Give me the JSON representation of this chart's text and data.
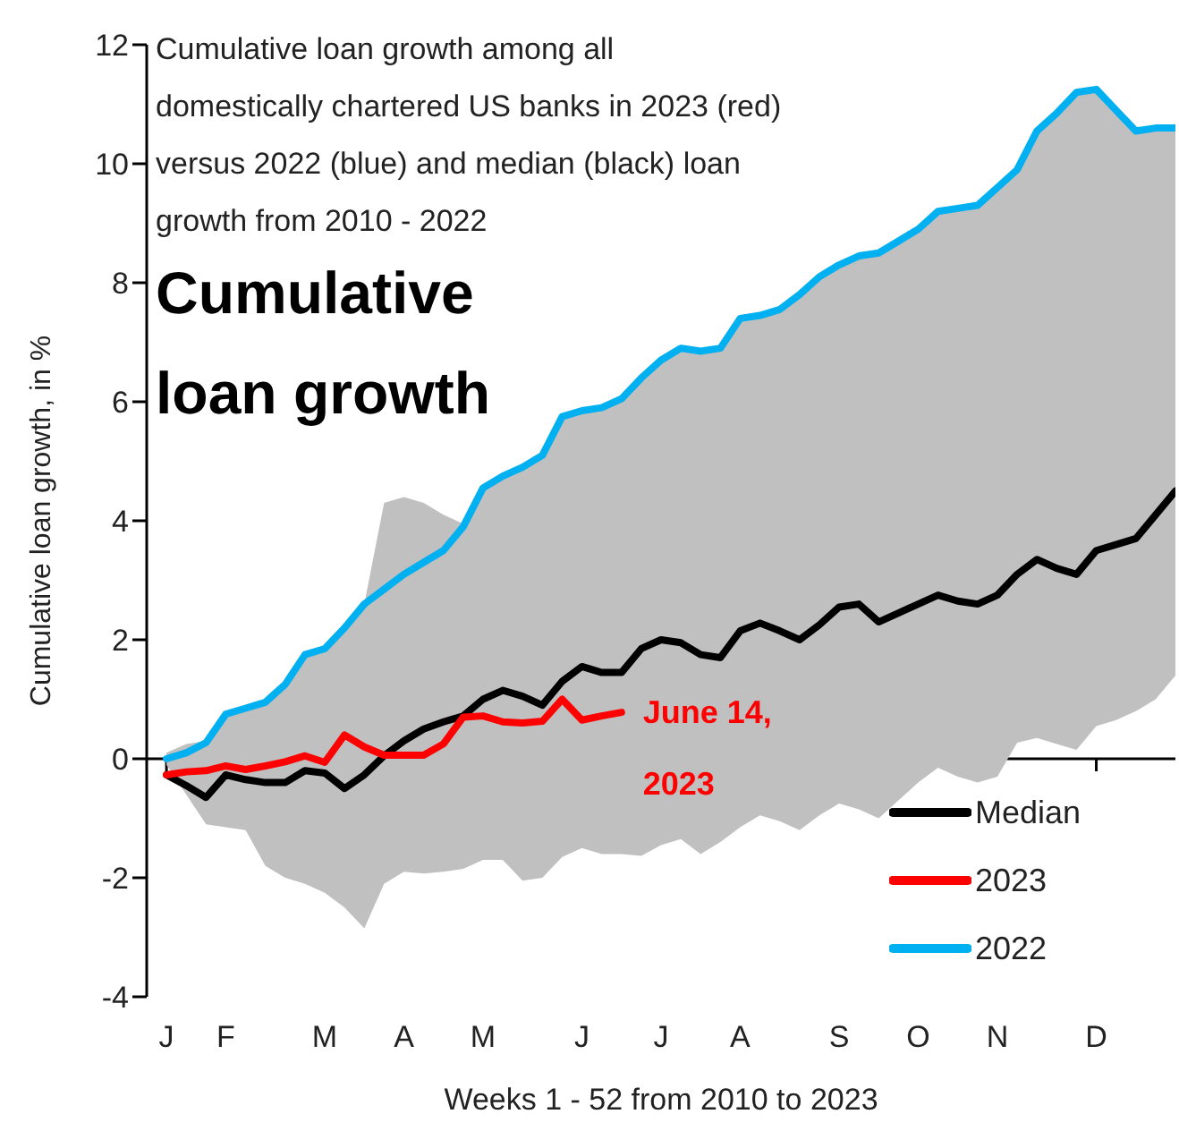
{
  "chart_data": {
    "type": "line",
    "title": "Cumulative loan growth",
    "subtitle": "Cumulative loan growth among all domestically chartered US banks in 2023 (red) versus 2022 (blue) and median (black) loan growth from 2010 - 2022",
    "xlabel": "Weeks 1 - 52 from 2010 to 2023",
    "ylabel": "Cumulative loan growth, in %",
    "categories": [
      "J",
      null,
      null,
      "F",
      null,
      null,
      null,
      null,
      "M",
      null,
      null,
      null,
      "A",
      null,
      null,
      null,
      "M",
      null,
      null,
      null,
      null,
      "J",
      null,
      null,
      null,
      "J",
      null,
      null,
      null,
      "A",
      null,
      null,
      null,
      null,
      "S",
      null,
      null,
      null,
      "O",
      null,
      null,
      null,
      "N",
      null,
      null,
      null,
      null,
      "D",
      null,
      null,
      null,
      null
    ],
    "ylim": [
      -4,
      12
    ],
    "yticks": [
      -4,
      -2,
      0,
      2,
      4,
      6,
      8,
      10,
      12
    ],
    "series": [
      {
        "name": "Median",
        "color": "#000000",
        "values": [
          -0.27,
          -0.45,
          -0.65,
          -0.27,
          -0.35,
          -0.4,
          -0.4,
          -0.2,
          -0.24,
          -0.5,
          -0.27,
          0.05,
          0.3,
          0.5,
          0.62,
          0.72,
          1.0,
          1.15,
          1.05,
          0.9,
          1.3,
          1.55,
          1.45,
          1.45,
          1.85,
          2.0,
          1.95,
          1.75,
          1.7,
          2.15,
          2.28,
          2.15,
          2.0,
          2.25,
          2.55,
          2.6,
          2.3,
          2.45,
          2.6,
          2.75,
          2.65,
          2.6,
          2.75,
          3.1,
          3.35,
          3.2,
          3.1,
          3.5,
          3.6,
          3.7,
          4.1,
          4.5
        ],
        "lower": [
          -0.1,
          -0.6,
          -1.1,
          -1.15,
          -1.2,
          -1.8,
          -2.0,
          -2.1,
          -2.25,
          -2.5,
          -2.85,
          -2.1,
          -1.9,
          -1.93,
          -1.9,
          -1.85,
          -1.7,
          -1.7,
          -2.05,
          -2.0,
          -1.65,
          -1.5,
          -1.6,
          -1.6,
          -1.63,
          -1.45,
          -1.35,
          -1.6,
          -1.4,
          -1.15,
          -0.95,
          -1.05,
          -1.2,
          -0.95,
          -0.75,
          -0.85,
          -1.0,
          -0.7,
          -0.4,
          -0.15,
          -0.3,
          -0.4,
          -0.3,
          0.27,
          0.35,
          0.25,
          0.15,
          0.55,
          0.65,
          0.8,
          1.0,
          1.4
        ],
        "upper": [
          0.1,
          0.25,
          0.3,
          0.75,
          0.85,
          0.95,
          1.25,
          1.75,
          1.85,
          2.2,
          2.6,
          4.3,
          4.4,
          4.3,
          4.1,
          3.95,
          4.55,
          4.75,
          4.9,
          5.1,
          5.75,
          5.85,
          5.9,
          6.05,
          6.4,
          6.7,
          6.9,
          6.85,
          6.9,
          7.4,
          7.45,
          7.55,
          7.8,
          8.1,
          8.3,
          8.45,
          8.5,
          8.7,
          8.9,
          9.2,
          9.25,
          9.3,
          9.6,
          9.9,
          10.55,
          10.85,
          11.2,
          11.25,
          10.9,
          10.55,
          10.6,
          10.6
        ]
      },
      {
        "name": "2023",
        "color": "#ff0000",
        "values": [
          -0.27,
          -0.22,
          -0.2,
          -0.12,
          -0.18,
          -0.12,
          -0.05,
          0.05,
          -0.06,
          0.4,
          0.2,
          0.06,
          0.06,
          0.06,
          0.25,
          0.7,
          0.72,
          0.62,
          0.6,
          0.63,
          1.0,
          0.65,
          0.72,
          0.78,
          null,
          null,
          null,
          null,
          null,
          null,
          null,
          null,
          null,
          null,
          null,
          null,
          null,
          null,
          null,
          null,
          null,
          null,
          null,
          null,
          null,
          null,
          null,
          null,
          null,
          null,
          null,
          null
        ]
      },
      {
        "name": "2022",
        "color": "#00b0f0",
        "values": [
          0,
          0.1,
          0.27,
          0.75,
          0.85,
          0.95,
          1.25,
          1.75,
          1.85,
          2.2,
          2.6,
          2.85,
          3.1,
          3.3,
          3.5,
          3.9,
          4.55,
          4.75,
          4.9,
          5.1,
          5.75,
          5.85,
          5.9,
          6.05,
          6.4,
          6.7,
          6.9,
          6.85,
          6.9,
          7.4,
          7.45,
          7.55,
          7.8,
          8.1,
          8.3,
          8.45,
          8.5,
          8.7,
          8.9,
          9.2,
          9.25,
          9.3,
          9.6,
          9.9,
          10.55,
          10.85,
          11.2,
          11.25,
          10.9,
          10.55,
          10.6,
          10.6
        ]
      }
    ],
    "annotations": [
      "June 14, 2023"
    ],
    "legend": "bottom right"
  }
}
